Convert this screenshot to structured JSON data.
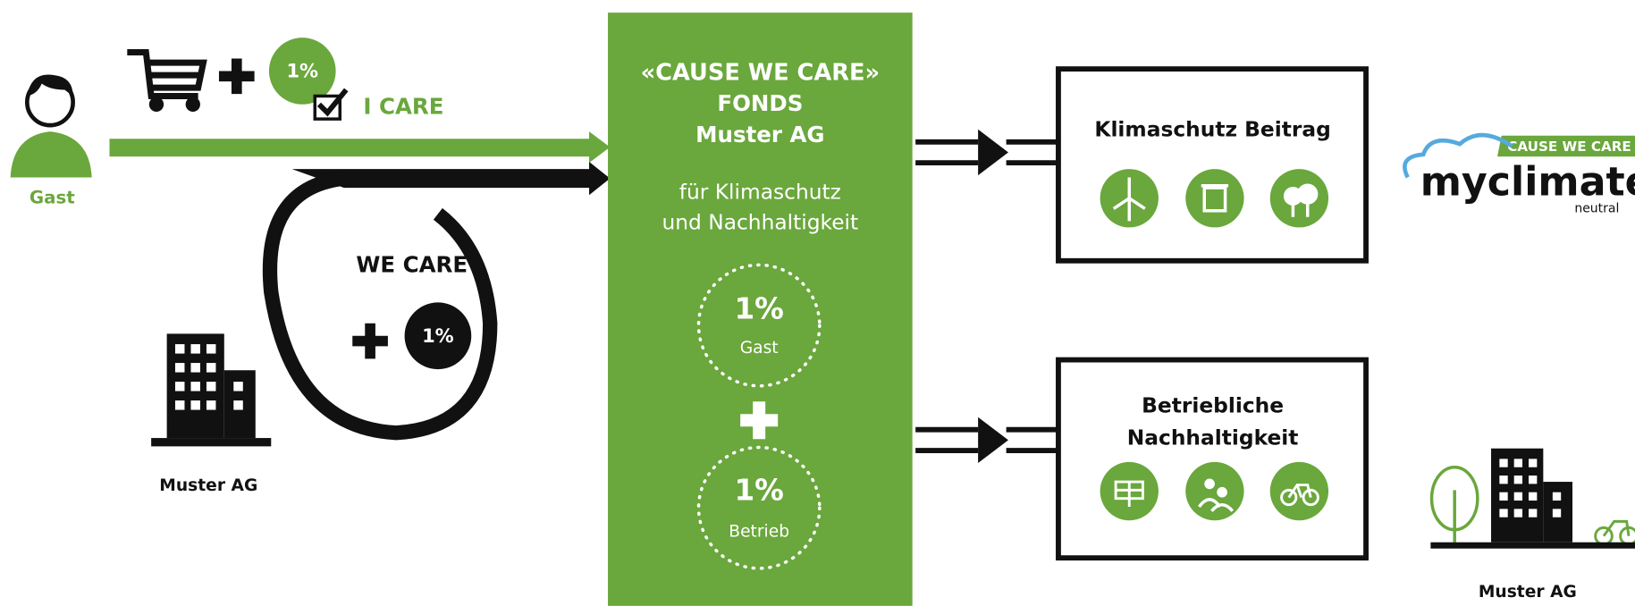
{
  "guest": {
    "label": "Gast",
    "surcharge": "1%",
    "option": "I CARE"
  },
  "company": {
    "option": "WE CARE",
    "surcharge": "1%",
    "label": "Muster AG"
  },
  "fund": {
    "title": [
      "«CAUSE WE CARE»",
      "FONDS",
      "Muster AG"
    ],
    "purpose": [
      "für Klimaschutz",
      "und Nachhaltigkeit"
    ],
    "parts": [
      {
        "share": "1%",
        "source": "Gast"
      },
      {
        "share": "1%",
        "source": "Betrieb"
      }
    ]
  },
  "targets": [
    {
      "title": [
        "Klimaschutz Beitrag"
      ]
    },
    {
      "title": [
        "Betriebliche",
        "Nachhaltigkeit"
      ]
    }
  ],
  "partner": {
    "tag": "CAUSE WE CARE",
    "name": "myclimate",
    "subtitle": "neutral"
  },
  "result": {
    "label": "Muster AG"
  }
}
